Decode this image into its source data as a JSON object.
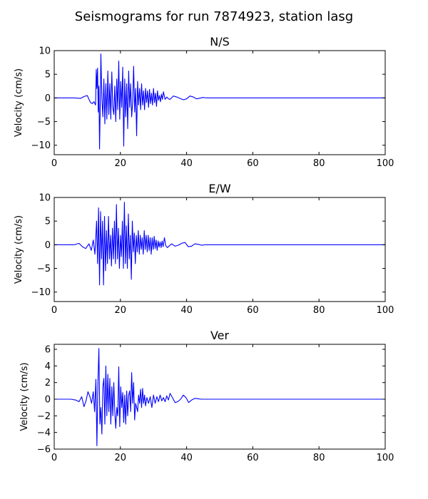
{
  "figure": {
    "title": "Seismograms for run 7874923, station lasg"
  },
  "colors": {
    "trace": "#0000ff",
    "axis": "#000000",
    "background": "#ffffff"
  },
  "chart_data": [
    {
      "type": "line",
      "title": "N/S",
      "xlabel": "",
      "ylabel": "Velocity (cm/s)",
      "xlim": [
        0,
        100
      ],
      "ylim": [
        -12,
        10
      ],
      "xticks": [
        0,
        20,
        40,
        60,
        80,
        100
      ],
      "yticks": [
        -10,
        -5,
        0,
        5,
        10
      ],
      "grid": false,
      "series": [
        {
          "x": [
            0,
            6,
            8,
            9,
            10,
            10.5,
            11,
            11.5,
            12,
            12.5,
            12.7,
            12.9,
            13.1,
            13.3,
            13.5,
            13.7,
            13.9,
            14.1,
            14.4,
            14.7,
            15.0,
            15.3,
            15.6,
            15.9,
            16.2,
            16.5,
            16.8,
            17.1,
            17.4,
            17.7,
            18.0,
            18.3,
            18.6,
            18.9,
            19.2,
            19.5,
            19.8,
            20.1,
            20.4,
            20.7,
            21.0,
            21.3,
            21.6,
            21.9,
            22.2,
            22.5,
            22.8,
            23.1,
            23.4,
            23.7,
            24.0,
            24.3,
            24.6,
            24.9,
            25.2,
            25.5,
            25.8,
            26.1,
            26.4,
            26.7,
            27.0,
            27.3,
            27.6,
            27.9,
            28.2,
            28.5,
            28.8,
            29.1,
            29.4,
            29.7,
            30.0,
            30.3,
            30.6,
            30.9,
            31.2,
            31.5,
            31.8,
            32.1,
            32.4,
            32.7,
            33.0,
            33.5,
            34,
            34.5,
            35,
            36,
            37,
            38,
            39,
            40,
            41,
            42,
            43,
            44,
            45,
            46,
            48,
            50,
            60,
            70,
            80,
            90,
            100
          ],
          "y": [
            0,
            0,
            -0.1,
            0.3,
            0.5,
            -0.3,
            -1.0,
            -1.2,
            -0.8,
            -1.5,
            6.0,
            2.0,
            6.3,
            -3.0,
            2.5,
            -10.8,
            -2.0,
            9.3,
            0.0,
            -4.0,
            4.0,
            -5.5,
            3.0,
            -4.5,
            5.7,
            -3.5,
            3.0,
            -4.5,
            5.5,
            -2.0,
            -3.5,
            2.5,
            -5.0,
            4.0,
            -2.5,
            7.8,
            -4.5,
            3.5,
            -2.0,
            6.5,
            -10.2,
            4.0,
            -4.0,
            3.0,
            -6.5,
            5.7,
            -2.0,
            3.0,
            -4.0,
            -1.0,
            6.7,
            -3.0,
            2.0,
            -8.0,
            3.5,
            -1.5,
            2.0,
            -2.5,
            3.0,
            -1.5,
            1.5,
            -2.5,
            2.0,
            -1.0,
            1.5,
            -2.0,
            1.8,
            -1.2,
            1.0,
            -1.5,
            2.0,
            -1.0,
            1.0,
            -1.8,
            1.5,
            -0.5,
            0.5,
            -0.8,
            0.8,
            -0.3,
            1.3,
            -0.3,
            0.2,
            -0.2,
            -0.3,
            0.4,
            0.2,
            -0.1,
            -0.4,
            -0.2,
            0.4,
            0.2,
            -0.2,
            -0.05,
            0.1,
            0,
            0,
            0,
            0,
            0,
            0,
            0,
            0
          ]
        }
      ]
    },
    {
      "type": "line",
      "title": "E/W",
      "xlabel": "",
      "ylabel": "Velocity (cm/s)",
      "xlim": [
        0,
        100
      ],
      "ylim": [
        -12,
        10
      ],
      "xticks": [
        0,
        20,
        40,
        60,
        80,
        100
      ],
      "yticks": [
        -10,
        -5,
        0,
        5,
        10
      ],
      "grid": false,
      "series": [
        {
          "x": [
            0,
            6,
            7.5,
            8.5,
            9.5,
            10.5,
            11.2,
            11.8,
            12.3,
            12.8,
            13.1,
            13.4,
            13.7,
            14.0,
            14.3,
            14.6,
            14.9,
            15.2,
            15.5,
            15.8,
            16.1,
            16.4,
            16.7,
            17.0,
            17.3,
            17.6,
            17.9,
            18.2,
            18.5,
            18.8,
            19.1,
            19.4,
            19.7,
            20.0,
            20.3,
            20.6,
            20.9,
            21.2,
            21.5,
            21.8,
            22.1,
            22.4,
            22.7,
            23.0,
            23.3,
            23.6,
            23.9,
            24.2,
            24.5,
            24.8,
            25.1,
            25.4,
            25.7,
            26.0,
            26.3,
            26.6,
            26.9,
            27.2,
            27.5,
            27.8,
            28.1,
            28.4,
            28.7,
            29.0,
            29.3,
            29.6,
            29.9,
            30.2,
            30.5,
            30.8,
            31.1,
            31.4,
            31.7,
            32.0,
            32.3,
            32.6,
            32.9,
            33.3,
            33.7,
            34.2,
            34.8,
            35.5,
            36.5,
            37.5,
            38.5,
            39.5,
            40.5,
            41.5,
            42.5,
            43.5,
            44.5,
            45.5,
            47,
            50,
            60,
            70,
            80,
            90,
            100
          ],
          "y": [
            0,
            0,
            0.3,
            -0.4,
            -0.8,
            0.2,
            -1.2,
            1.0,
            -2.0,
            5.0,
            -4.0,
            7.8,
            -8.5,
            7.0,
            -3.0,
            5.0,
            -8.5,
            6.0,
            -5.5,
            3.0,
            -4.0,
            6.0,
            -3.0,
            2.0,
            -4.5,
            3.5,
            -3.0,
            5.0,
            -4.0,
            8.5,
            -3.0,
            3.5,
            -5.0,
            2.0,
            -2.5,
            5.0,
            -5.0,
            9.0,
            -4.0,
            4.0,
            -5.0,
            6.5,
            -3.0,
            2.0,
            -7.3,
            5.0,
            -1.5,
            2.5,
            -4.0,
            2.0,
            -1.5,
            3.0,
            -2.0,
            2.0,
            -1.0,
            1.5,
            -2.0,
            3.0,
            -1.0,
            2.0,
            -1.5,
            2.0,
            -1.2,
            1.5,
            -2.0,
            1.5,
            -1.0,
            1.8,
            -0.8,
            1.0,
            -1.2,
            0.8,
            -0.5,
            0.6,
            -0.6,
            0.8,
            -0.4,
            1.5,
            -0.2,
            -0.6,
            -0.2,
            0.2,
            -0.3,
            -0.1,
            0.3,
            0.5,
            -0.4,
            -0.3,
            0.2,
            0.1,
            -0.1,
            0,
            0,
            0,
            0,
            0,
            0,
            0,
            0
          ]
        }
      ]
    },
    {
      "type": "line",
      "title": "Ver",
      "xlabel": "",
      "ylabel": "Velocity (cm/s)",
      "xlim": [
        0,
        100
      ],
      "ylim": [
        -6,
        6.6
      ],
      "xticks": [
        0,
        20,
        40,
        60,
        80,
        100
      ],
      "yticks": [
        -6,
        -4,
        -2,
        0,
        2,
        4,
        6
      ],
      "grid": false,
      "series": [
        {
          "x": [
            0,
            5,
            6.5,
            7.5,
            8.3,
            9.0,
            9.6,
            10.2,
            10.8,
            11.3,
            11.8,
            12.2,
            12.6,
            12.9,
            13.2,
            13.5,
            13.8,
            14.1,
            14.4,
            14.7,
            15.0,
            15.3,
            15.6,
            15.9,
            16.2,
            16.5,
            16.8,
            17.1,
            17.4,
            17.7,
            18.0,
            18.3,
            18.6,
            18.9,
            19.2,
            19.5,
            19.8,
            20.1,
            20.4,
            20.7,
            21.0,
            21.3,
            21.6,
            21.9,
            22.2,
            22.5,
            22.8,
            23.1,
            23.4,
            23.7,
            24.0,
            24.3,
            24.6,
            24.9,
            25.2,
            25.5,
            25.8,
            26.1,
            26.4,
            26.7,
            27.0,
            27.3,
            27.6,
            28.0,
            28.5,
            29.0,
            29.5,
            30.0,
            30.5,
            31.0,
            31.5,
            32.0,
            32.5,
            33.0,
            33.5,
            34.0,
            34.5,
            35.0,
            35.7,
            36.5,
            37.3,
            38.2,
            39.0,
            39.8,
            40.6,
            41.5,
            42.5,
            43.5,
            44.5,
            45.5,
            47,
            50,
            60,
            70,
            80,
            90,
            100
          ],
          "y": [
            0,
            0,
            -0.1,
            -0.3,
            0.3,
            -0.9,
            -0.2,
            0.9,
            0.3,
            -0.5,
            0.9,
            -1.5,
            2.4,
            -5.6,
            2.0,
            6.1,
            -3.0,
            -1.0,
            -4.2,
            1.5,
            2.5,
            -3.0,
            4.0,
            -2.0,
            3.0,
            -1.5,
            2.5,
            -3.0,
            1.5,
            -2.0,
            2.0,
            -1.5,
            -3.5,
            -1.0,
            -2.0,
            3.9,
            -3.3,
            1.5,
            -1.0,
            0.8,
            -2.8,
            0.5,
            -3.0,
            1.0,
            -2.0,
            0.5,
            1.0,
            -1.5,
            3.2,
            -0.5,
            2.0,
            -2.5,
            -0.5,
            -1.0,
            -1.5,
            0.5,
            -0.5,
            1.2,
            -1.0,
            1.3,
            -0.5,
            0.5,
            -0.8,
            0.2,
            -0.5,
            0.3,
            -1.0,
            0.5,
            -0.5,
            0.3,
            -0.3,
            0.5,
            -0.2,
            0.2,
            -0.3,
            0.4,
            -0.1,
            0.7,
            0.2,
            -0.4,
            -0.3,
            0.0,
            0.5,
            0.2,
            -0.4,
            -0.1,
            0.1,
            0.05,
            0,
            0,
            0,
            0,
            0,
            0,
            0,
            0,
            0
          ]
        }
      ]
    }
  ]
}
